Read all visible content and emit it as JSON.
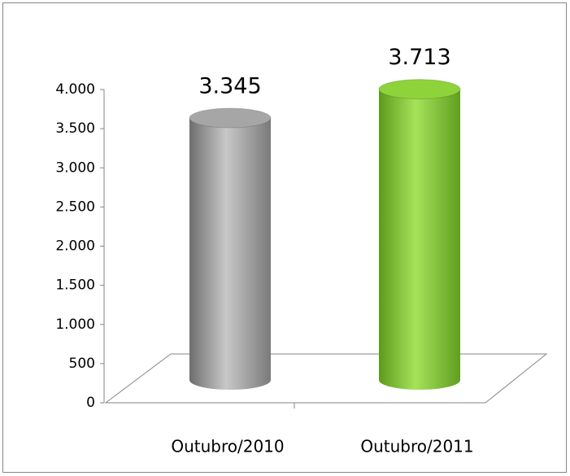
{
  "chart_data": {
    "type": "cylinder",
    "categories": [
      "Outubro/2010",
      "Outubro/2011"
    ],
    "series": [
      {
        "colors": [
          "#a6a6a6",
          "#8ed33a"
        ],
        "values": [
          3345,
          3713
        ],
        "value_labels": [
          "3.345",
          "3.713"
        ]
      }
    ],
    "ylim": [
      0,
      4000
    ],
    "yticks": [
      0,
      500,
      {
        "value": 1000,
        "label": "1.000"
      },
      {
        "value": 1500,
        "label": "1.500"
      },
      {
        "value": 2000,
        "label": "2.000"
      },
      {
        "value": 2500,
        "label": "2.500"
      },
      {
        "value": 3000,
        "label": "3.000"
      },
      {
        "value": 3500,
        "label": "3.500"
      },
      {
        "value": 4000,
        "label": "4.000"
      }
    ]
  }
}
